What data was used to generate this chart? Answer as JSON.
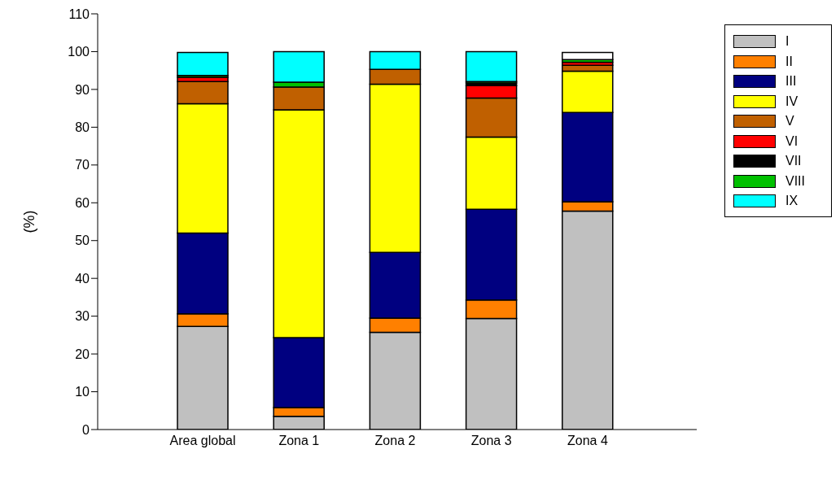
{
  "chart_data": {
    "type": "bar",
    "stacked": true,
    "ylabel": "(%)",
    "categories": [
      "Area global",
      "Zona 1",
      "Zona 2",
      "Zona 3",
      "Zona 4"
    ],
    "ylim": [
      0,
      110
    ],
    "yticks": [
      0,
      10,
      20,
      30,
      40,
      50,
      60,
      70,
      80,
      90,
      100,
      110
    ],
    "grid": false,
    "legend": "top right",
    "series": [
      {
        "name": "I",
        "color": "#c0c0c0",
        "values": [
          27.3,
          3.5,
          25.7,
          29.4,
          57.8
        ]
      },
      {
        "name": "II",
        "color": "#ff8000",
        "values": [
          3.3,
          2.3,
          3.8,
          4.9,
          2.5
        ]
      },
      {
        "name": "III",
        "color": "#000080",
        "values": [
          21.4,
          18.5,
          17.4,
          24.0,
          23.6
        ]
      },
      {
        "name": "IV",
        "color": "#ffff00",
        "values": [
          34.2,
          60.3,
          44.5,
          19.1,
          10.9
        ]
      },
      {
        "name": "V",
        "color": "#c06000",
        "values": [
          5.9,
          6.0,
          3.9,
          10.3,
          1.6
        ]
      },
      {
        "name": "VI",
        "color": "#ff0000",
        "values": [
          1.1,
          0,
          0,
          3.3,
          0.8
        ]
      },
      {
        "name": "VII",
        "color": "#000000",
        "values": [
          null,
          0,
          0,
          0.7,
          null
        ]
      },
      {
        "name": "VIII",
        "color": "#00c000",
        "values": [
          0.5,
          1.3,
          0,
          0.4,
          0.7
        ]
      },
      {
        "name": "IX",
        "color": "#00ffff",
        "values": [
          6.1,
          8.1,
          4.7,
          7.9,
          0
        ]
      },
      {
        "color": "#ffffff",
        "values": [
          0,
          0,
          0,
          0,
          1.9
        ]
      }
    ]
  }
}
